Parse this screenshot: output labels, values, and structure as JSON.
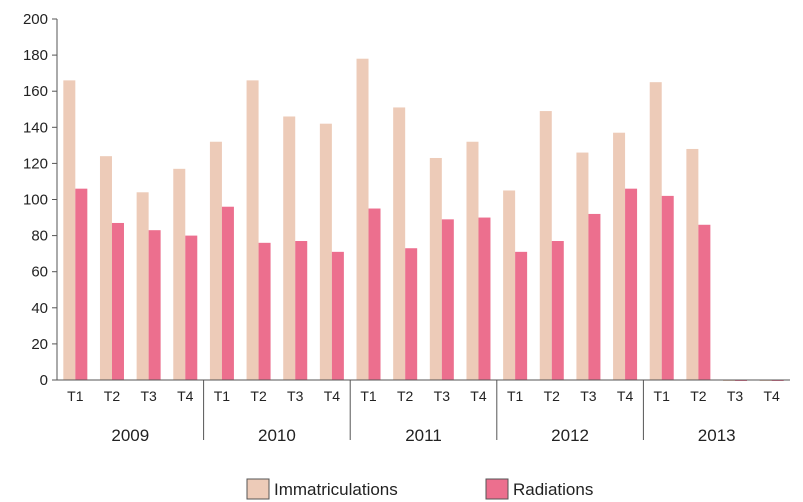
{
  "chart_data": {
    "type": "bar",
    "title": "",
    "xlabel": "",
    "ylabel": "",
    "ylim": [
      0,
      200
    ],
    "yticks": [
      0,
      20,
      40,
      60,
      80,
      100,
      120,
      140,
      160,
      180,
      200
    ],
    "grid": false,
    "legend_position": "bottom",
    "groups": [
      {
        "label": "2009",
        "categories": [
          "T1",
          "T2",
          "T3",
          "T4"
        ]
      },
      {
        "label": "2010",
        "categories": [
          "T1",
          "T2",
          "T3",
          "T4"
        ]
      },
      {
        "label": "2011",
        "categories": [
          "T1",
          "T2",
          "T3",
          "T4"
        ]
      },
      {
        "label": "2012",
        "categories": [
          "T1",
          "T2",
          "T3",
          "T4"
        ]
      },
      {
        "label": "2013",
        "categories": [
          "T1",
          "T2",
          "T3",
          "T4"
        ]
      }
    ],
    "series": [
      {
        "name": "Immatriculations",
        "color": "#edcbb8",
        "values": [
          166,
          124,
          104,
          117,
          132,
          166,
          146,
          142,
          178,
          151,
          123,
          132,
          105,
          149,
          126,
          137,
          165,
          128,
          0,
          0
        ]
      },
      {
        "name": "Radiations",
        "color": "#ec6f8e",
        "values": [
          106,
          87,
          83,
          80,
          96,
          76,
          77,
          71,
          95,
          73,
          89,
          90,
          71,
          77,
          92,
          106,
          102,
          86,
          0,
          0
        ]
      }
    ]
  }
}
